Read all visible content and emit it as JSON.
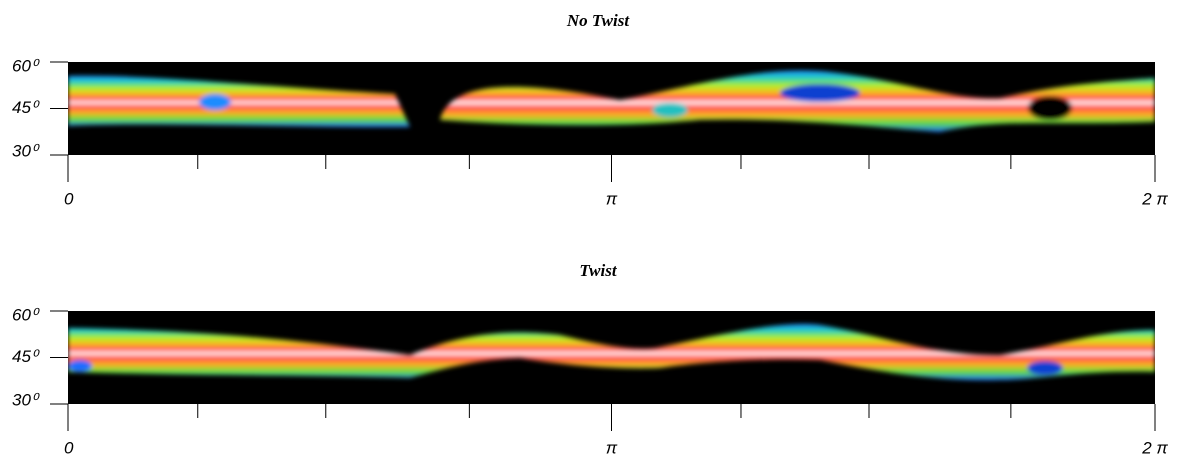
{
  "chart_data": [
    {
      "type": "heatmap",
      "title": "No Twist",
      "xlim": [
        0,
        6.2832
      ],
      "ylim": [
        30,
        60
      ],
      "xticks": [
        0,
        {
          "value": 3.1416,
          "label": "π"
        },
        {
          "value": 6.2832,
          "label": "2 π"
        }
      ],
      "xminorticks": [
        0.75,
        1.49,
        2.32,
        3.89,
        4.63,
        5.45
      ],
      "yticks": [
        {
          "value": 60,
          "label": "60⁰"
        },
        {
          "value": 45,
          "label": "45⁰"
        },
        {
          "value": 30,
          "label": "30⁰"
        }
      ]
    },
    {
      "type": "heatmap",
      "title": "Twist",
      "xlim": [
        0,
        6.2832
      ],
      "ylim": [
        30,
        60
      ],
      "xticks": [
        0,
        {
          "value": 3.1416,
          "label": "π"
        },
        {
          "value": 6.2832,
          "label": "2 π"
        }
      ],
      "xminorticks": [
        0.75,
        1.49,
        2.32,
        3.89,
        4.63,
        5.45
      ],
      "yticks": [
        {
          "value": 60,
          "label": "60⁰"
        },
        {
          "value": 45,
          "label": "45⁰"
        },
        {
          "value": 30,
          "label": "30⁰"
        }
      ]
    }
  ]
}
